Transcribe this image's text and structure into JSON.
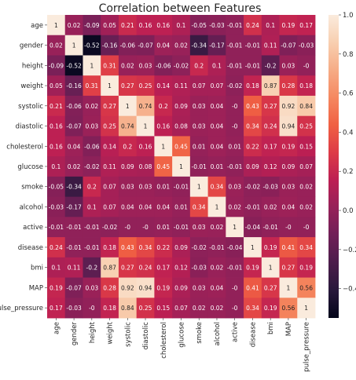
{
  "chart_data": {
    "type": "heatmap",
    "title": "Correlation between Features",
    "row_labels": [
      "age",
      "gender",
      "height",
      "weight",
      "systolic",
      "diastolic",
      "cholesterol",
      "glucose",
      "smoke",
      "alcohol",
      "active",
      "disease",
      "bmi",
      "MAP",
      "pulse_pressure"
    ],
    "col_labels": [
      "age",
      "gender",
      "height",
      "weight",
      "systolic",
      "diastolic",
      "cholesterol",
      "glucose",
      "smoke",
      "alcohol",
      "active",
      "disease",
      "bmi",
      "MAP",
      "pulse_pressure"
    ],
    "values": [
      [
        1,
        0.02,
        -0.09,
        0.05,
        0.21,
        0.16,
        0.16,
        0.1,
        -0.05,
        -0.03,
        -0.01,
        0.24,
        0.1,
        0.19,
        0.17
      ],
      [
        0.02,
        1,
        -0.52,
        -0.16,
        -0.06,
        -0.07,
        0.04,
        0.02,
        -0.34,
        -0.17,
        -0.01,
        -0.01,
        0.11,
        -0.07,
        -0.03
      ],
      [
        -0.09,
        -0.52,
        1,
        0.31,
        0.02,
        0.03,
        -0.06,
        -0.02,
        0.2,
        0.1,
        -0.01,
        -0.01,
        -0.2,
        0.03,
        0
      ],
      [
        0.05,
        -0.16,
        0.31,
        1,
        0.27,
        0.25,
        0.14,
        0.11,
        0.07,
        0.07,
        -0.02,
        0.18,
        0.87,
        0.28,
        0.18
      ],
      [
        0.21,
        -0.06,
        0.02,
        0.27,
        1,
        0.74,
        0.2,
        0.09,
        0.03,
        0.04,
        0,
        0.43,
        0.27,
        0.92,
        0.84
      ],
      [
        0.16,
        -0.07,
        0.03,
        0.25,
        0.74,
        1,
        0.16,
        0.08,
        0.03,
        0.04,
        0,
        0.34,
        0.24,
        0.94,
        0.25
      ],
      [
        0.16,
        0.04,
        -0.06,
        0.14,
        0.2,
        0.16,
        1,
        0.45,
        0.01,
        0.04,
        0.01,
        0.22,
        0.17,
        0.19,
        0.15
      ],
      [
        0.1,
        0.02,
        -0.02,
        0.11,
        0.09,
        0.08,
        0.45,
        1,
        -0.01,
        0.01,
        -0.01,
        0.09,
        0.12,
        0.09,
        0.07
      ],
      [
        -0.05,
        -0.34,
        0.2,
        0.07,
        0.03,
        0.03,
        0.01,
        -0.01,
        1,
        0.34,
        0.03,
        -0.02,
        -0.03,
        0.03,
        0.02
      ],
      [
        -0.03,
        -0.17,
        0.1,
        0.07,
        0.04,
        0.04,
        0.04,
        0.01,
        0.34,
        1,
        0.02,
        -0.01,
        0.02,
        0.04,
        0.02
      ],
      [
        -0.01,
        -0.01,
        -0.01,
        -0.02,
        0,
        0,
        0.01,
        -0.01,
        0.03,
        0.02,
        1,
        -0.04,
        -0.01,
        0,
        0
      ],
      [
        0.24,
        -0.01,
        -0.01,
        0.18,
        0.43,
        0.34,
        0.22,
        0.09,
        -0.02,
        -0.01,
        -0.04,
        1,
        0.19,
        0.41,
        0.34
      ],
      [
        0.1,
        0.11,
        -0.2,
        0.87,
        0.27,
        0.24,
        0.17,
        0.12,
        -0.03,
        0.02,
        -0.01,
        0.19,
        1,
        0.27,
        0.19
      ],
      [
        0.19,
        -0.07,
        0.03,
        0.28,
        0.92,
        0.94,
        0.19,
        0.09,
        0.03,
        0.04,
        0,
        0.41,
        0.27,
        1,
        0.56
      ],
      [
        0.17,
        -0.03,
        0,
        0.18,
        0.84,
        0.25,
        0.15,
        0.07,
        0.02,
        0.02,
        0,
        0.34,
        0.19,
        0.56,
        1
      ]
    ],
    "colorbar": {
      "range": [
        -0.55,
        1.0
      ],
      "ticks": [
        -0.4,
        -0.2,
        0.0,
        0.2,
        0.4,
        0.6,
        0.8,
        1.0
      ],
      "tick_labels": [
        "−0.4",
        "−0.2",
        "0.0",
        "0.2",
        "0.4",
        "0.6",
        "0.8",
        "1.0"
      ],
      "colormap": "rocket",
      "colormap_stops": [
        "#03051a",
        "#28183b",
        "#4c1d4b",
        "#701f57",
        "#962159",
        "#bc1f53",
        "#dd3b47",
        "#f06043",
        "#f58860",
        "#f6ac86",
        "#f8cfb0",
        "#faebdd"
      ]
    },
    "cell_text_dark": "#222222",
    "cell_text_light": "#ffffff",
    "grid": false
  }
}
